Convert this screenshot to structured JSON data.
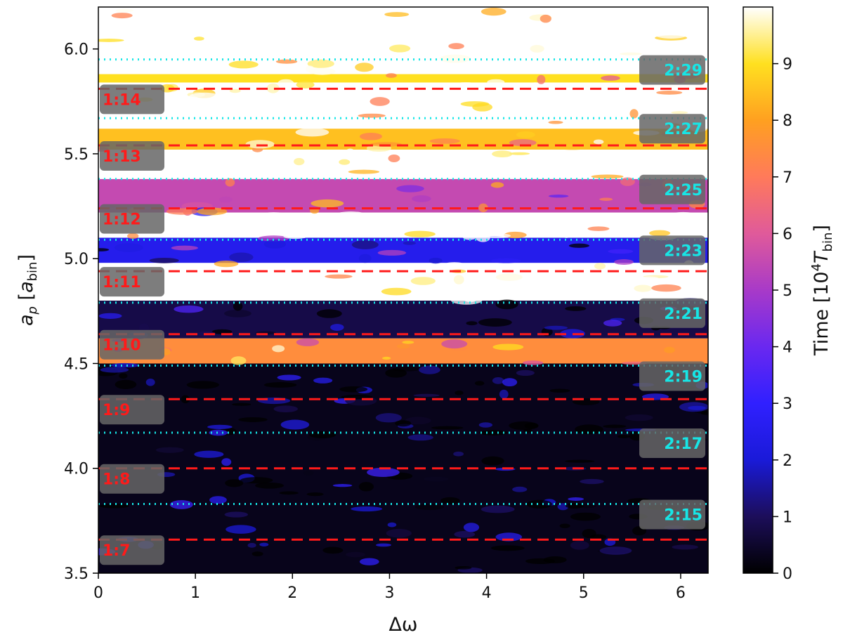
{
  "chart_data": {
    "type": "heatmap",
    "xlabel": "Δω",
    "ylabel_main": "a",
    "ylabel_sub": "p",
    "ylabel_unit_main": "a",
    "ylabel_unit_sub": "bin",
    "xlim": [
      0,
      6.283
    ],
    "ylim": [
      3.5,
      6.2
    ],
    "x_ticks": [
      "0",
      "1",
      "2",
      "3",
      "4",
      "5",
      "6"
    ],
    "x_tick_values": [
      0,
      1,
      2,
      3,
      4,
      5,
      6
    ],
    "y_ticks": [
      "3.5",
      "4.0",
      "4.5",
      "5.0",
      "5.5",
      "6.0"
    ],
    "y_tick_values": [
      3.5,
      4.0,
      4.5,
      5.0,
      5.5,
      6.0
    ],
    "colorbar": {
      "label_prefix": "Time [10",
      "label_exp": "4",
      "label_var": "T",
      "label_sub": "bin",
      "label_suffix": "]",
      "range": [
        0,
        10
      ],
      "ticks": [
        "0",
        "1",
        "2",
        "3",
        "4",
        "5",
        "6",
        "7",
        "8",
        "9"
      ],
      "tick_values": [
        0,
        1,
        2,
        3,
        4,
        5,
        6,
        7,
        8,
        9
      ],
      "colormap": "gnuplot2"
    },
    "resonances_1n": [
      {
        "label": "1:14",
        "a": 5.81
      },
      {
        "label": "1:13",
        "a": 5.54
      },
      {
        "label": "1:12",
        "a": 5.24
      },
      {
        "label": "1:11",
        "a": 4.94
      },
      {
        "label": "1:10",
        "a": 4.64
      },
      {
        "label": "1:9",
        "a": 4.33
      },
      {
        "label": "1:8",
        "a": 4.0
      },
      {
        "label": "1:7",
        "a": 3.66
      }
    ],
    "resonances_2n": [
      {
        "label": "2:29",
        "a": 5.95
      },
      {
        "label": "2:27",
        "a": 5.67
      },
      {
        "label": "2:25",
        "a": 5.38
      },
      {
        "label": "2:23",
        "a": 5.09
      },
      {
        "label": "2:21",
        "a": 4.79
      },
      {
        "label": "2:19",
        "a": 4.49
      },
      {
        "label": "2:17",
        "a": 4.17
      },
      {
        "label": "2:15",
        "a": 3.83
      }
    ],
    "colors": {
      "res_1n": "#ff1a1a",
      "res_2n": "#17e6e6",
      "label_box": "#666666"
    },
    "field_bands": [
      {
        "a_min": 3.5,
        "a_max": 4.5,
        "level": 0.3
      },
      {
        "a_min": 4.5,
        "a_max": 4.62,
        "level": 7.5
      },
      {
        "a_min": 4.62,
        "a_max": 4.8,
        "level": 0.8
      },
      {
        "a_min": 4.8,
        "a_max": 4.98,
        "level": 10
      },
      {
        "a_min": 4.98,
        "a_max": 5.1,
        "level": 2.5
      },
      {
        "a_min": 5.1,
        "a_max": 5.22,
        "level": 10
      },
      {
        "a_min": 5.22,
        "a_max": 5.38,
        "level": 5.5
      },
      {
        "a_min": 5.38,
        "a_max": 5.52,
        "level": 10
      },
      {
        "a_min": 5.52,
        "a_max": 5.62,
        "level": 8.5
      },
      {
        "a_min": 5.62,
        "a_max": 5.84,
        "level": 10
      },
      {
        "a_min": 5.84,
        "a_max": 5.88,
        "level": 9
      },
      {
        "a_min": 5.88,
        "a_max": 6.2,
        "level": 10
      }
    ]
  }
}
